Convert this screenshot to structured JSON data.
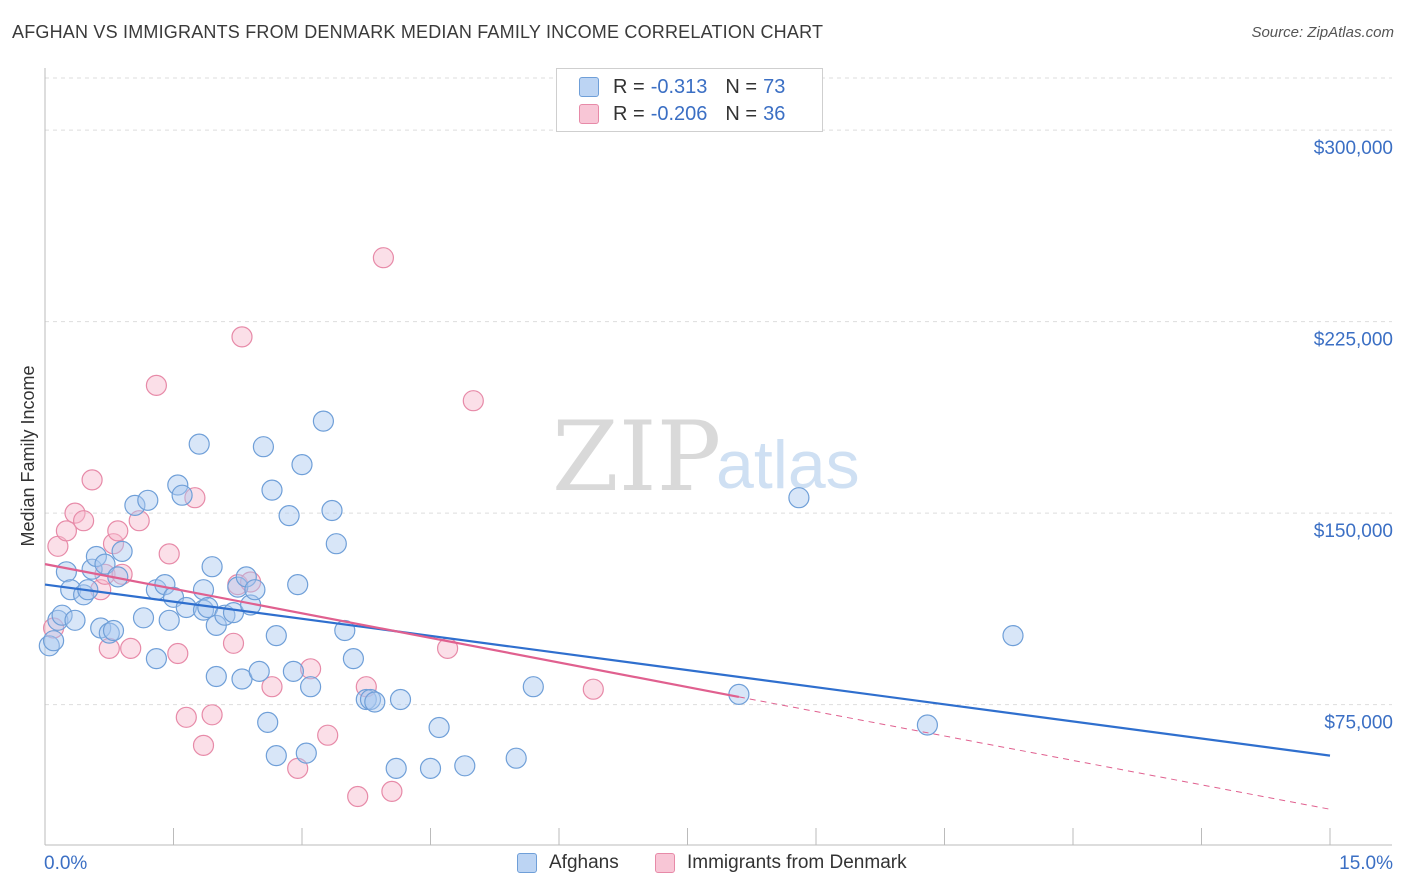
{
  "title": "AFGHAN VS IMMIGRANTS FROM DENMARK MEDIAN FAMILY INCOME CORRELATION CHART",
  "source": "Source: ZipAtlas.com",
  "watermark": {
    "zip": "ZIP",
    "atlas": "atlas"
  },
  "legend_top": {
    "rows": [
      {
        "r_label": "R = ",
        "r_value": "-0.313",
        "n_label": "N = ",
        "n_value": "73"
      },
      {
        "r_label": "R = ",
        "r_value": "-0.206",
        "n_label": "N = ",
        "n_value": "36"
      }
    ]
  },
  "legend_bottom": [
    "Afghans",
    "Immigrants from Denmark"
  ],
  "colors": {
    "afghans_fill": "#a9c8ef",
    "afghans_stroke": "#6f9fd8",
    "afghans_line": "#2f6fce",
    "denmark_fill": "#f6b9cc",
    "denmark_stroke": "#e78aa8",
    "denmark_line": "#e0608f",
    "grid": "#dddddd",
    "tick_label": "#3b6fc4"
  },
  "chart_data": {
    "type": "scatter",
    "title": "AFGHAN VS IMMIGRANTS FROM DENMARK MEDIAN FAMILY INCOME CORRELATION CHART",
    "xlabel": "",
    "ylabel": "Median Family Income",
    "xlim": [
      0,
      15
    ],
    "ylim": [
      20000,
      315000
    ],
    "x_tick_labels": [
      "0.0%",
      "15.0%"
    ],
    "y_ticks": [
      75000,
      150000,
      225000,
      300000
    ],
    "y_tick_labels": [
      "$75,000",
      "$150,000",
      "$225,000",
      "$300,000"
    ],
    "grid": true,
    "legend_position": "top-center",
    "series": [
      {
        "name": "Afghans",
        "r": -0.313,
        "n": 73,
        "trend": {
          "x": [
            0,
            15
          ],
          "y": [
            122000,
            55000
          ]
        },
        "points": [
          [
            0.05,
            98000
          ],
          [
            0.1,
            100000
          ],
          [
            0.15,
            108000
          ],
          [
            0.2,
            110000
          ],
          [
            0.25,
            127000
          ],
          [
            0.3,
            120000
          ],
          [
            0.35,
            108000
          ],
          [
            0.45,
            118000
          ],
          [
            0.5,
            120000
          ],
          [
            0.55,
            128000
          ],
          [
            0.6,
            133000
          ],
          [
            0.65,
            105000
          ],
          [
            0.7,
            130000
          ],
          [
            0.75,
            103000
          ],
          [
            0.8,
            104000
          ],
          [
            0.85,
            125000
          ],
          [
            0.9,
            135000
          ],
          [
            1.05,
            153000
          ],
          [
            1.15,
            109000
          ],
          [
            1.2,
            155000
          ],
          [
            1.3,
            120000
          ],
          [
            1.3,
            93000
          ],
          [
            1.4,
            122000
          ],
          [
            1.45,
            108000
          ],
          [
            1.5,
            117000
          ],
          [
            1.55,
            161000
          ],
          [
            1.6,
            157000
          ],
          [
            1.65,
            113000
          ],
          [
            1.8,
            177000
          ],
          [
            1.85,
            120000
          ],
          [
            1.85,
            112000
          ],
          [
            1.9,
            113000
          ],
          [
            1.95,
            129000
          ],
          [
            2.0,
            106000
          ],
          [
            2.0,
            86000
          ],
          [
            2.1,
            110000
          ],
          [
            2.2,
            111000
          ],
          [
            2.25,
            121000
          ],
          [
            2.3,
            85000
          ],
          [
            2.35,
            125000
          ],
          [
            2.4,
            114000
          ],
          [
            2.45,
            120000
          ],
          [
            2.5,
            88000
          ],
          [
            2.55,
            176000
          ],
          [
            2.6,
            68000
          ],
          [
            2.65,
            159000
          ],
          [
            2.7,
            102000
          ],
          [
            2.7,
            55000
          ],
          [
            2.85,
            149000
          ],
          [
            2.9,
            88000
          ],
          [
            2.95,
            122000
          ],
          [
            3.0,
            169000
          ],
          [
            3.05,
            56000
          ],
          [
            3.1,
            82000
          ],
          [
            3.25,
            186000
          ],
          [
            3.35,
            151000
          ],
          [
            3.4,
            138000
          ],
          [
            3.5,
            104000
          ],
          [
            3.6,
            93000
          ],
          [
            3.75,
            77000
          ],
          [
            3.8,
            77000
          ],
          [
            3.85,
            76000
          ],
          [
            4.1,
            50000
          ],
          [
            4.15,
            77000
          ],
          [
            4.5,
            50000
          ],
          [
            4.6,
            66000
          ],
          [
            4.9,
            51000
          ],
          [
            5.5,
            54000
          ],
          [
            5.7,
            82000
          ],
          [
            8.1,
            79000
          ],
          [
            8.8,
            156000
          ],
          [
            10.3,
            67000
          ],
          [
            11.3,
            102000
          ]
        ]
      },
      {
        "name": "Immigrants from Denmark",
        "r": -0.206,
        "n": 36,
        "trend": {
          "x": [
            0,
            8.1
          ],
          "y": [
            130000,
            78000
          ],
          "dashed_x": [
            8.1,
            15
          ],
          "dashed_y": [
            78000,
            34000
          ]
        },
        "points": [
          [
            0.1,
            105000
          ],
          [
            0.15,
            137000
          ],
          [
            0.25,
            143000
          ],
          [
            0.35,
            150000
          ],
          [
            0.45,
            147000
          ],
          [
            0.55,
            163000
          ],
          [
            0.65,
            120000
          ],
          [
            0.7,
            126000
          ],
          [
            0.75,
            97000
          ],
          [
            0.8,
            138000
          ],
          [
            0.85,
            143000
          ],
          [
            0.9,
            126000
          ],
          [
            1.0,
            97000
          ],
          [
            1.1,
            147000
          ],
          [
            1.3,
            200000
          ],
          [
            1.45,
            134000
          ],
          [
            1.55,
            95000
          ],
          [
            1.65,
            70000
          ],
          [
            1.75,
            156000
          ],
          [
            1.85,
            59000
          ],
          [
            1.95,
            71000
          ],
          [
            2.2,
            99000
          ],
          [
            2.25,
            122000
          ],
          [
            2.3,
            219000
          ],
          [
            2.4,
            123000
          ],
          [
            2.65,
            82000
          ],
          [
            2.95,
            50000
          ],
          [
            3.1,
            89000
          ],
          [
            3.3,
            63000
          ],
          [
            3.65,
            39000
          ],
          [
            3.75,
            82000
          ],
          [
            3.95,
            250000
          ],
          [
            4.05,
            41000
          ],
          [
            4.7,
            97000
          ],
          [
            5.0,
            194000
          ],
          [
            6.4,
            81000
          ]
        ]
      }
    ]
  }
}
